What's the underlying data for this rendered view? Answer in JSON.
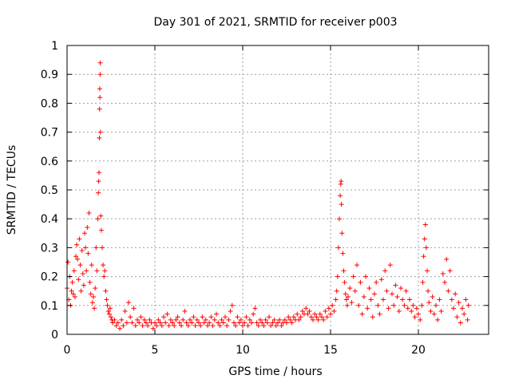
{
  "chart_data": {
    "type": "scatter",
    "title": "Day 301 of 2021, SRMTID for receiver p003",
    "xlabel": "GPS time / hours",
    "ylabel": "SRMTID / TECUs",
    "xlim": [
      0,
      24
    ],
    "ylim": [
      0,
      1
    ],
    "xticks": [
      0,
      5,
      10,
      15,
      20
    ],
    "xtick_labels": [
      "0",
      "5",
      "10",
      "15",
      "20"
    ],
    "yticks": [
      0,
      0.1,
      0.2,
      0.3,
      0.4,
      0.5,
      0.6,
      0.7,
      0.8,
      0.9,
      1
    ],
    "ytick_labels": [
      "0",
      "0.1",
      "0.2",
      "0.3",
      "0.4",
      "0.5",
      "0.6",
      "0.7",
      "0.8",
      "0.9",
      "1"
    ],
    "grid": true,
    "marker": "+",
    "color": "#ff0000",
    "series": [
      {
        "name": "SRMTID",
        "points": [
          [
            0.0,
            0.16
          ],
          [
            0.05,
            0.25
          ],
          [
            0.1,
            0.12
          ],
          [
            0.15,
            0.2
          ],
          [
            0.2,
            0.1
          ],
          [
            0.25,
            0.15
          ],
          [
            0.3,
            0.18
          ],
          [
            0.35,
            0.14
          ],
          [
            0.4,
            0.22
          ],
          [
            0.45,
            0.13
          ],
          [
            0.5,
            0.27
          ],
          [
            0.55,
            0.31
          ],
          [
            0.6,
            0.26
          ],
          [
            0.65,
            0.19
          ],
          [
            0.7,
            0.33
          ],
          [
            0.75,
            0.24
          ],
          [
            0.8,
            0.15
          ],
          [
            0.85,
            0.29
          ],
          [
            0.9,
            0.21
          ],
          [
            0.95,
            0.17
          ],
          [
            1.0,
            0.35
          ],
          [
            1.05,
            0.3
          ],
          [
            1.1,
            0.22
          ],
          [
            1.15,
            0.37
          ],
          [
            1.2,
            0.28
          ],
          [
            1.25,
            0.42
          ],
          [
            1.3,
            0.18
          ],
          [
            1.35,
            0.14
          ],
          [
            1.4,
            0.24
          ],
          [
            1.45,
            0.11
          ],
          [
            1.5,
            0.13
          ],
          [
            1.55,
            0.09
          ],
          [
            1.6,
            0.16
          ],
          [
            1.65,
            0.3
          ],
          [
            1.7,
            0.22
          ],
          [
            1.75,
            0.4
          ],
          [
            1.78,
            0.49
          ],
          [
            1.8,
            0.53
          ],
          [
            1.82,
            0.56
          ],
          [
            1.84,
            0.68
          ],
          [
            1.85,
            0.78
          ],
          [
            1.86,
            0.85
          ],
          [
            1.87,
            0.82
          ],
          [
            1.88,
            0.9
          ],
          [
            1.89,
            0.94
          ],
          [
            1.9,
            0.7
          ],
          [
            1.92,
            0.41
          ],
          [
            1.95,
            0.36
          ],
          [
            2.0,
            0.3
          ],
          [
            2.05,
            0.24
          ],
          [
            2.1,
            0.2
          ],
          [
            2.15,
            0.22
          ],
          [
            2.2,
            0.15
          ],
          [
            2.25,
            0.12
          ],
          [
            2.3,
            0.1
          ],
          [
            2.35,
            0.08
          ],
          [
            2.4,
            0.07
          ],
          [
            2.45,
            0.09
          ],
          [
            2.5,
            0.06
          ],
          [
            2.55,
            0.05
          ],
          [
            2.6,
            0.04
          ],
          [
            2.7,
            0.05
          ],
          [
            2.8,
            0.03
          ],
          [
            2.9,
            0.04
          ],
          [
            3.0,
            0.02
          ],
          [
            3.1,
            0.05
          ],
          [
            3.2,
            0.03
          ],
          [
            3.3,
            0.08
          ],
          [
            3.4,
            0.04
          ],
          [
            3.5,
            0.11
          ],
          [
            3.6,
            0.06
          ],
          [
            3.7,
            0.04
          ],
          [
            3.8,
            0.09
          ],
          [
            3.9,
            0.03
          ],
          [
            4.0,
            0.05
          ],
          [
            4.1,
            0.04
          ],
          [
            4.2,
            0.06
          ],
          [
            4.3,
            0.03
          ],
          [
            4.4,
            0.05
          ],
          [
            4.5,
            0.04
          ],
          [
            4.6,
            0.03
          ],
          [
            4.7,
            0.05
          ],
          [
            4.8,
            0.04
          ],
          [
            4.9,
            0.02
          ],
          [
            5.0,
            0.04
          ],
          [
            5.1,
            0.03
          ],
          [
            5.2,
            0.05
          ],
          [
            5.3,
            0.04
          ],
          [
            5.4,
            0.03
          ],
          [
            5.5,
            0.06
          ],
          [
            5.6,
            0.04
          ],
          [
            5.7,
            0.07
          ],
          [
            5.8,
            0.03
          ],
          [
            5.9,
            0.05
          ],
          [
            6.0,
            0.04
          ],
          [
            6.1,
            0.03
          ],
          [
            6.2,
            0.05
          ],
          [
            6.3,
            0.06
          ],
          [
            6.4,
            0.04
          ],
          [
            6.5,
            0.03
          ],
          [
            6.6,
            0.05
          ],
          [
            6.7,
            0.08
          ],
          [
            6.8,
            0.04
          ],
          [
            6.9,
            0.03
          ],
          [
            7.0,
            0.05
          ],
          [
            7.1,
            0.04
          ],
          [
            7.2,
            0.06
          ],
          [
            7.3,
            0.03
          ],
          [
            7.4,
            0.05
          ],
          [
            7.5,
            0.04
          ],
          [
            7.6,
            0.03
          ],
          [
            7.7,
            0.06
          ],
          [
            7.8,
            0.04
          ],
          [
            7.9,
            0.05
          ],
          [
            8.0,
            0.03
          ],
          [
            8.1,
            0.04
          ],
          [
            8.2,
            0.06
          ],
          [
            8.3,
            0.03
          ],
          [
            8.4,
            0.05
          ],
          [
            8.5,
            0.07
          ],
          [
            8.6,
            0.04
          ],
          [
            8.7,
            0.03
          ],
          [
            8.8,
            0.05
          ],
          [
            8.9,
            0.04
          ],
          [
            9.0,
            0.06
          ],
          [
            9.1,
            0.03
          ],
          [
            9.2,
            0.05
          ],
          [
            9.3,
            0.08
          ],
          [
            9.4,
            0.1
          ],
          [
            9.5,
            0.04
          ],
          [
            9.6,
            0.03
          ],
          [
            9.7,
            0.06
          ],
          [
            9.8,
            0.04
          ],
          [
            9.9,
            0.05
          ],
          [
            10.0,
            0.03
          ],
          [
            10.1,
            0.04
          ],
          [
            10.2,
            0.06
          ],
          [
            10.3,
            0.03
          ],
          [
            10.4,
            0.05
          ],
          [
            10.5,
            0.04
          ],
          [
            10.6,
            0.07
          ],
          [
            10.7,
            0.09
          ],
          [
            10.8,
            0.04
          ],
          [
            10.9,
            0.03
          ],
          [
            11.0,
            0.05
          ],
          [
            11.1,
            0.04
          ],
          [
            11.2,
            0.03
          ],
          [
            11.3,
            0.05
          ],
          [
            11.4,
            0.04
          ],
          [
            11.5,
            0.06
          ],
          [
            11.6,
            0.03
          ],
          [
            11.7,
            0.04
          ],
          [
            11.8,
            0.05
          ],
          [
            11.9,
            0.03
          ],
          [
            12.0,
            0.04
          ],
          [
            12.1,
            0.05
          ],
          [
            12.2,
            0.03
          ],
          [
            12.3,
            0.04
          ],
          [
            12.4,
            0.05
          ],
          [
            12.5,
            0.04
          ],
          [
            12.6,
            0.06
          ],
          [
            12.7,
            0.05
          ],
          [
            12.8,
            0.04
          ],
          [
            12.9,
            0.06
          ],
          [
            13.0,
            0.05
          ],
          [
            13.1,
            0.07
          ],
          [
            13.2,
            0.05
          ],
          [
            13.3,
            0.06
          ],
          [
            13.4,
            0.08
          ],
          [
            13.5,
            0.07
          ],
          [
            13.6,
            0.09
          ],
          [
            13.7,
            0.07
          ],
          [
            13.8,
            0.08
          ],
          [
            13.9,
            0.06
          ],
          [
            14.0,
            0.05
          ],
          [
            14.1,
            0.07
          ],
          [
            14.2,
            0.06
          ],
          [
            14.3,
            0.05
          ],
          [
            14.4,
            0.07
          ],
          [
            14.5,
            0.06
          ],
          [
            14.6,
            0.05
          ],
          [
            14.7,
            0.08
          ],
          [
            14.8,
            0.06
          ],
          [
            14.9,
            0.09
          ],
          [
            15.0,
            0.07
          ],
          [
            15.1,
            0.1
          ],
          [
            15.2,
            0.08
          ],
          [
            15.3,
            0.12
          ],
          [
            15.35,
            0.15
          ],
          [
            15.4,
            0.2
          ],
          [
            15.45,
            0.3
          ],
          [
            15.5,
            0.4
          ],
          [
            15.55,
            0.48
          ],
          [
            15.58,
            0.52
          ],
          [
            15.6,
            0.53
          ],
          [
            15.62,
            0.45
          ],
          [
            15.65,
            0.35
          ],
          [
            15.7,
            0.28
          ],
          [
            15.75,
            0.22
          ],
          [
            15.8,
            0.18
          ],
          [
            15.85,
            0.14
          ],
          [
            15.9,
            0.12
          ],
          [
            15.95,
            0.1
          ],
          [
            16.0,
            0.13
          ],
          [
            16.1,
            0.16
          ],
          [
            16.2,
            0.11
          ],
          [
            16.3,
            0.2
          ],
          [
            16.4,
            0.15
          ],
          [
            16.5,
            0.24
          ],
          [
            16.6,
            0.1
          ],
          [
            16.7,
            0.18
          ],
          [
            16.8,
            0.07
          ],
          [
            16.9,
            0.13
          ],
          [
            17.0,
            0.2
          ],
          [
            17.1,
            0.09
          ],
          [
            17.2,
            0.16
          ],
          [
            17.3,
            0.12
          ],
          [
            17.4,
            0.06
          ],
          [
            17.5,
            0.14
          ],
          [
            17.6,
            0.18
          ],
          [
            17.7,
            0.1
          ],
          [
            17.8,
            0.07
          ],
          [
            17.9,
            0.19
          ],
          [
            18.0,
            0.12
          ],
          [
            18.1,
            0.22
          ],
          [
            18.2,
            0.15
          ],
          [
            18.3,
            0.09
          ],
          [
            18.4,
            0.24
          ],
          [
            18.5,
            0.14
          ],
          [
            18.6,
            0.1
          ],
          [
            18.7,
            0.17
          ],
          [
            18.8,
            0.13
          ],
          [
            18.9,
            0.08
          ],
          [
            19.0,
            0.16
          ],
          [
            19.1,
            0.12
          ],
          [
            19.2,
            0.1
          ],
          [
            19.3,
            0.15
          ],
          [
            19.4,
            0.09
          ],
          [
            19.5,
            0.12
          ],
          [
            19.6,
            0.08
          ],
          [
            19.7,
            0.1
          ],
          [
            19.8,
            0.06
          ],
          [
            19.9,
            0.09
          ],
          [
            20.0,
            0.07
          ],
          [
            20.1,
            0.05
          ],
          [
            20.2,
            0.1
          ],
          [
            20.25,
            0.18
          ],
          [
            20.3,
            0.27
          ],
          [
            20.35,
            0.33
          ],
          [
            20.4,
            0.38
          ],
          [
            20.45,
            0.3
          ],
          [
            20.5,
            0.22
          ],
          [
            20.55,
            0.15
          ],
          [
            20.6,
            0.11
          ],
          [
            20.7,
            0.08
          ],
          [
            20.8,
            0.13
          ],
          [
            20.9,
            0.07
          ],
          [
            21.0,
            0.1
          ],
          [
            21.1,
            0.05
          ],
          [
            21.2,
            0.12
          ],
          [
            21.3,
            0.08
          ],
          [
            21.4,
            0.21
          ],
          [
            21.5,
            0.18
          ],
          [
            21.6,
            0.26
          ],
          [
            21.7,
            0.15
          ],
          [
            21.8,
            0.22
          ],
          [
            21.9,
            0.12
          ],
          [
            22.0,
            0.09
          ],
          [
            22.1,
            0.14
          ],
          [
            22.2,
            0.06
          ],
          [
            22.3,
            0.11
          ],
          [
            22.4,
            0.04
          ],
          [
            22.5,
            0.09
          ],
          [
            22.6,
            0.07
          ],
          [
            22.7,
            0.12
          ],
          [
            22.8,
            0.05
          ],
          [
            22.85,
            0.1
          ]
        ]
      }
    ]
  }
}
